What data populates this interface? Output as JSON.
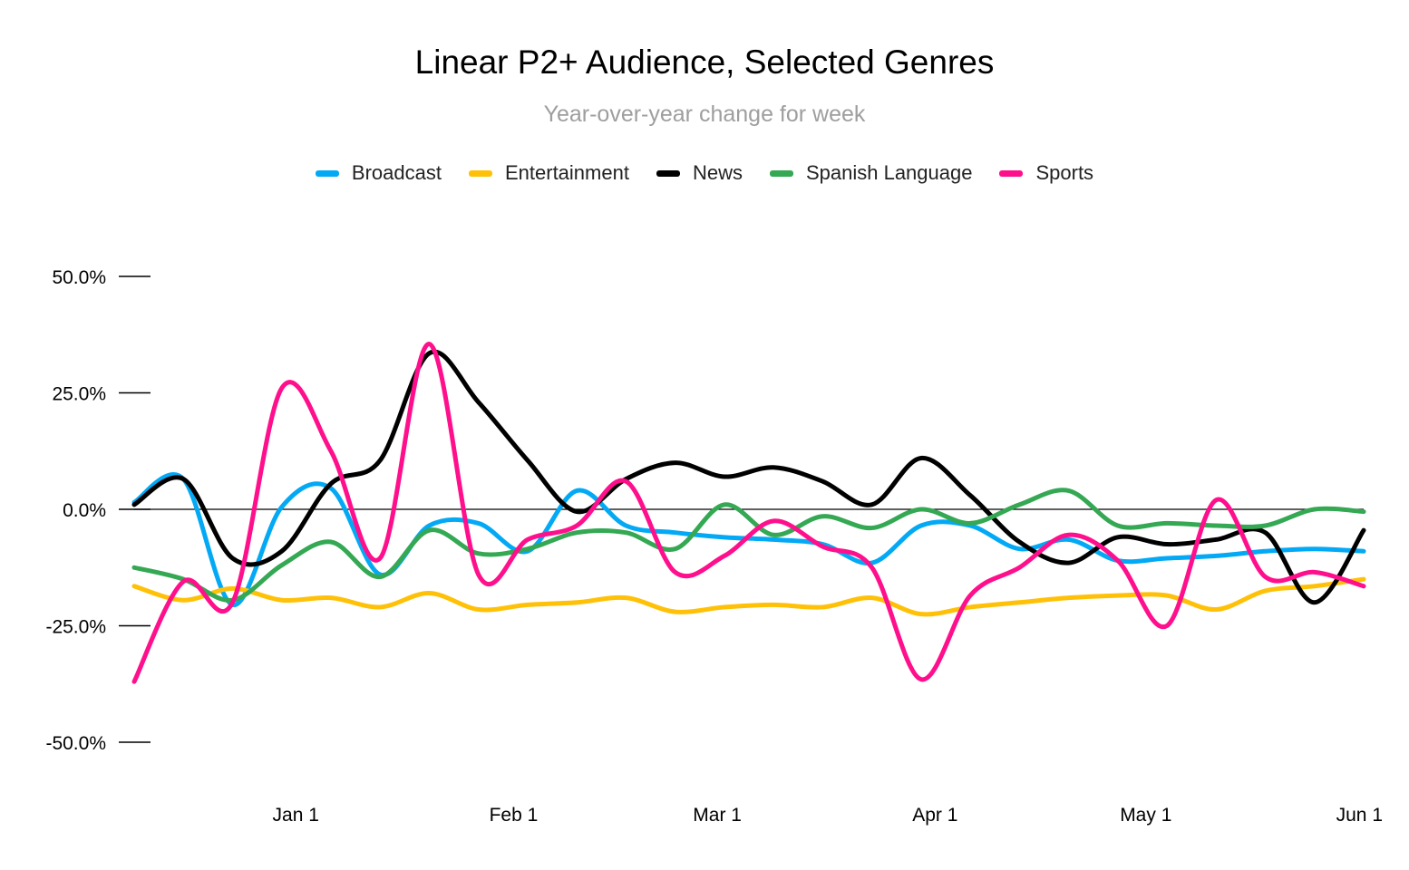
{
  "chart_data": {
    "type": "line",
    "title": "Linear P2+ Audience, Selected Genres",
    "subtitle": "Year-over-year change for week",
    "xlabel": "",
    "ylabel": "",
    "ylim": [
      -50,
      50
    ],
    "y_ticks": [
      50,
      25,
      0,
      -25,
      -50
    ],
    "y_tick_labels": [
      "50.0%",
      "25.0%",
      "0.0%",
      "-25.0%",
      "-50.0%"
    ],
    "x_ticks": [
      "2020-01-01",
      "2020-02-01",
      "2020-03-01",
      "2020-04-01",
      "2020-05-01",
      "2020-06-01"
    ],
    "x_tick_labels": [
      "Jan 1",
      "Feb 1",
      "Mar 1",
      "Apr 1",
      "May 1",
      "Jun 1"
    ],
    "x": [
      "2019-12-09",
      "2019-12-16",
      "2019-12-23",
      "2019-12-30",
      "2020-01-06",
      "2020-01-13",
      "2020-01-20",
      "2020-01-27",
      "2020-02-03",
      "2020-02-10",
      "2020-02-17",
      "2020-02-24",
      "2020-03-02",
      "2020-03-09",
      "2020-03-16",
      "2020-03-23",
      "2020-03-30",
      "2020-04-06",
      "2020-04-13",
      "2020-04-20",
      "2020-04-27",
      "2020-05-04",
      "2020-05-11",
      "2020-05-18",
      "2020-05-25",
      "2020-06-01"
    ],
    "legend_position": "top-center",
    "grid": false,
    "zero_line": true,
    "series": [
      {
        "name": "Broadcast",
        "color": "#03a9f4",
        "values": [
          1.5,
          6.5,
          -20.5,
          0.5,
          4.5,
          -14.0,
          -3.5,
          -3.0,
          -9.0,
          4.0,
          -3.5,
          -5.0,
          -6.0,
          -6.5,
          -7.5,
          -11.5,
          -3.5,
          -3.5,
          -8.5,
          -6.5,
          -11.0,
          -10.5,
          -10.0,
          -9.0,
          -8.5,
          -9.0
        ]
      },
      {
        "name": "Entertainment",
        "color": "#ffc107",
        "values": [
          -16.5,
          -19.5,
          -17.0,
          -19.5,
          -19.0,
          -21.0,
          -18.0,
          -21.5,
          -20.5,
          -20.0,
          -19.0,
          -22.0,
          -21.0,
          -20.5,
          -21.0,
          -19.0,
          -22.5,
          -21.0,
          -20.0,
          -19.0,
          -18.5,
          -18.5,
          -21.5,
          -17.5,
          -16.5,
          -15.0
        ]
      },
      {
        "name": "News",
        "color": "#000000",
        "values": [
          1.0,
          6.5,
          -10.5,
          -9.0,
          5.5,
          10.5,
          33.5,
          23.0,
          10.5,
          -0.5,
          6.5,
          10.0,
          7.0,
          9.0,
          6.0,
          1.0,
          11.0,
          3.0,
          -7.0,
          -11.5,
          -6.0,
          -7.5,
          -6.5,
          -5.0,
          -20.0,
          -4.5
        ]
      },
      {
        "name": "Spanish Language",
        "color": "#34a853",
        "values": [
          -12.5,
          -15.0,
          -19.5,
          -12.0,
          -7.0,
          -14.5,
          -4.5,
          -9.5,
          -8.5,
          -5.0,
          -5.0,
          -8.5,
          1.0,
          -5.5,
          -1.5,
          -4.0,
          0.0,
          -3.0,
          1.0,
          4.0,
          -3.5,
          -3.0,
          -3.5,
          -3.5,
          0.0,
          -0.5
        ]
      },
      {
        "name": "Sports",
        "color": "#ff0f8c",
        "values": [
          -37.0,
          -15.5,
          -20.0,
          26.0,
          12.5,
          -10.5,
          35.5,
          -14.0,
          -6.5,
          -3.5,
          6.0,
          -13.5,
          -10.0,
          -2.5,
          -8.0,
          -12.5,
          -36.5,
          -18.5,
          -12.5,
          -5.5,
          -11.0,
          -25.0,
          2.0,
          -14.5,
          -13.5,
          -16.5
        ]
      }
    ]
  }
}
